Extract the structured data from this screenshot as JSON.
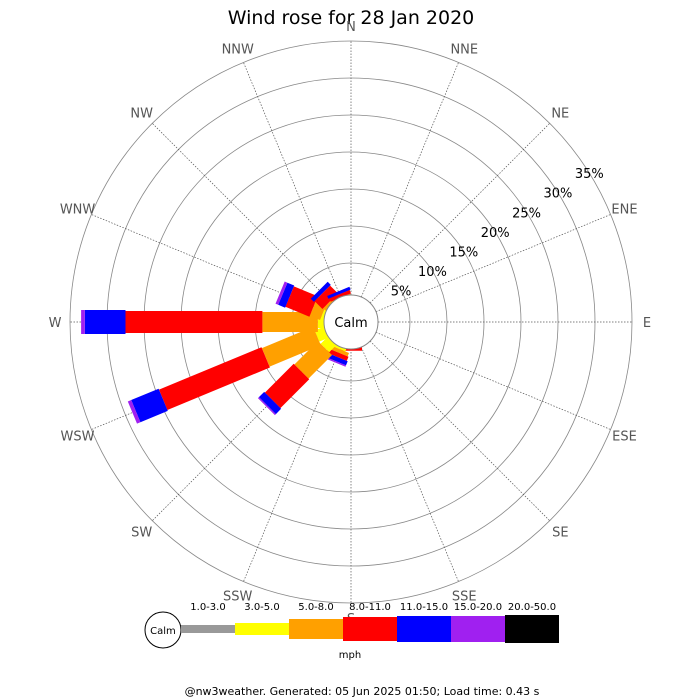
{
  "chart_data": {
    "type": "windrose",
    "title": "Wind rose for 28 Jan 2020",
    "directions": [
      "N",
      "NNE",
      "NE",
      "ENE",
      "E",
      "ESE",
      "SE",
      "SSE",
      "S",
      "SSW",
      "SW",
      "WSW",
      "W",
      "WNW",
      "NW",
      "NNW"
    ],
    "ring_labels": [
      "5%",
      "10%",
      "15%",
      "20%",
      "25%",
      "30%",
      "35%"
    ],
    "ring_values": [
      5,
      10,
      15,
      20,
      25,
      30,
      35
    ],
    "center_label": "Calm",
    "unit": "mph",
    "speed_bins": [
      {
        "label": "1.0-3.0",
        "color": "#999999"
      },
      {
        "label": "3.0-5.0",
        "color": "#ffff00"
      },
      {
        "label": "5.0-8.0",
        "color": "#ffa000"
      },
      {
        "label": "8.0-11.0",
        "color": "#ff0000"
      },
      {
        "label": "11.0-15.0",
        "color": "#0000ff"
      },
      {
        "label": "15.0-20.0",
        "color": "#a020f0"
      },
      {
        "label": "20.0-50.0",
        "color": "#000000"
      }
    ],
    "frequencies": {
      "S": [
        0,
        0.4,
        0,
        0.5,
        0,
        0,
        0
      ],
      "SSW": [
        0,
        1.0,
        0.5,
        0.6,
        0.6,
        0.2,
        0
      ],
      "SW": [
        0,
        2.0,
        4.5,
        5.5,
        1.0,
        0.2,
        0
      ],
      "WSW": [
        0,
        2.0,
        7.5,
        15.0,
        4.0,
        0.5,
        0
      ],
      "W": [
        0,
        1.5,
        7.5,
        18.5,
        5.5,
        0.5,
        0
      ],
      "WNW": [
        0,
        1.0,
        1.5,
        3.5,
        1.0,
        0.4,
        0
      ],
      "NW": [
        0,
        0.5,
        0.5,
        1.5,
        0.6,
        0,
        0
      ],
      "NNW": [
        0,
        0.3,
        0.3,
        0.5,
        0.4,
        0,
        0
      ]
    },
    "footer": "@nw3weather. Generated: 05 Jun 2025 01:50; Load time: 0.43 s"
  }
}
